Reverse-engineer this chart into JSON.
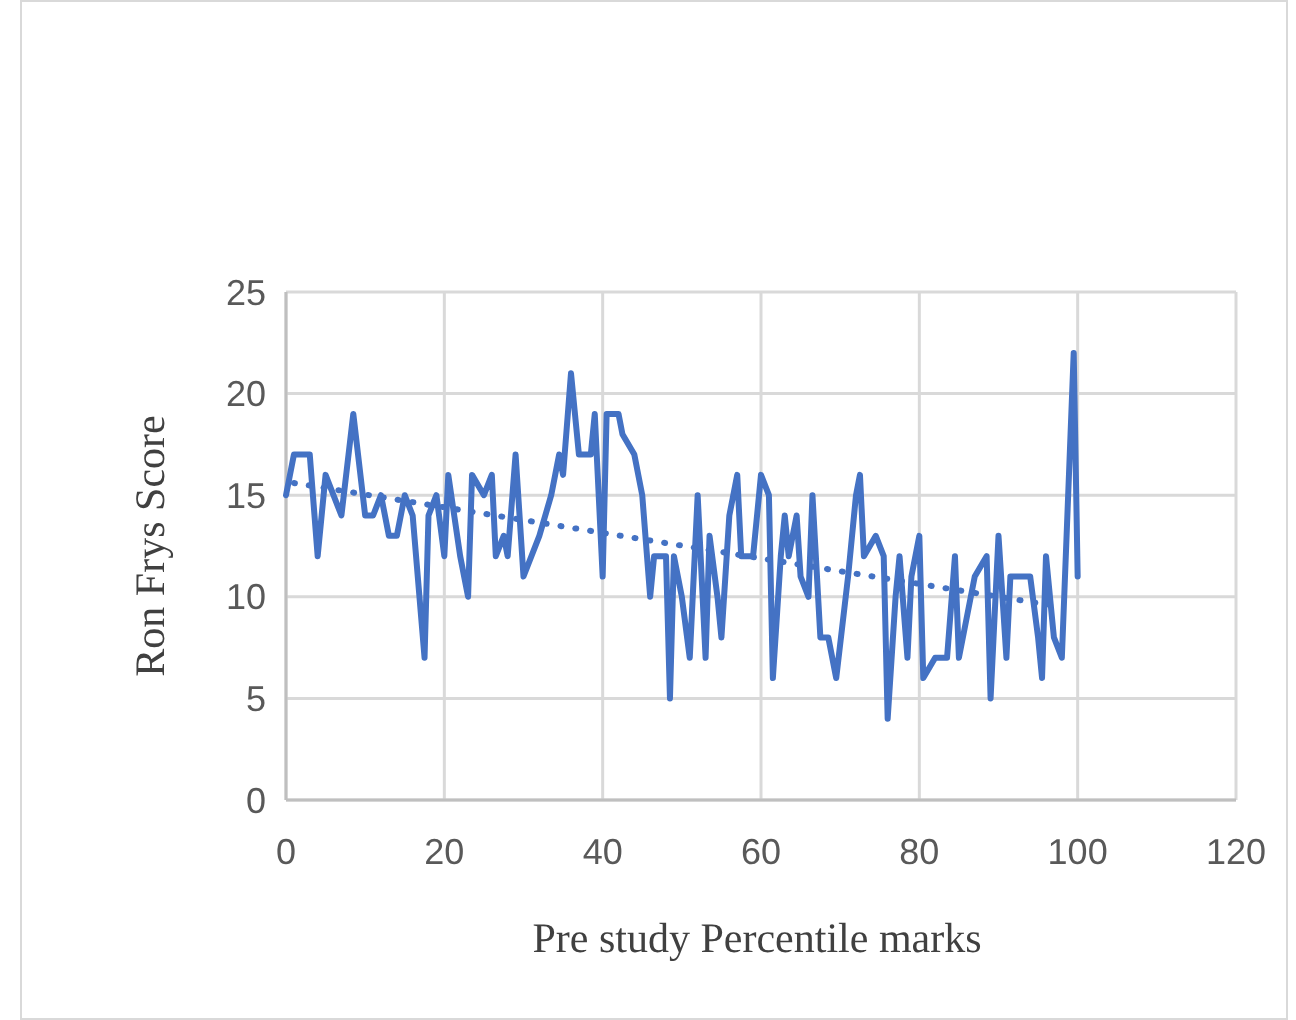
{
  "chart_data": {
    "type": "line",
    "xlabel": "Pre study Percentile marks",
    "ylabel": "Ron Frys Score",
    "xlim": [
      0,
      120
    ],
    "xticks": [
      0,
      20,
      40,
      60,
      80,
      100,
      120
    ],
    "ylim": [
      0,
      25
    ],
    "yticks": [
      0,
      5,
      10,
      15,
      20,
      25
    ],
    "grid": true,
    "series": [
      {
        "color": "#4472c4",
        "line_style": "solid",
        "x": [
          0,
          1,
          3,
          4,
          5,
          7,
          8.5,
          10,
          11,
          12,
          13,
          14,
          15,
          16,
          17.5,
          18,
          19,
          20,
          20.5,
          22,
          23,
          23.5,
          25,
          26,
          26.5,
          27.5,
          28,
          29,
          30,
          32,
          33.5,
          34.5,
          35,
          36,
          37,
          38.5,
          39,
          40,
          40.5,
          42,
          42.5,
          44,
          45,
          46,
          46.5,
          48,
          48.5,
          49,
          50,
          51,
          52,
          53,
          53.5,
          54.5,
          55,
          56,
          57,
          57.5,
          59,
          60,
          61,
          61.5,
          62.5,
          63,
          63.5,
          64.5,
          65,
          66,
          66.5,
          67.5,
          68.5,
          69.5,
          71,
          72,
          72.5,
          73,
          74.5,
          75.5,
          76,
          77,
          77.5,
          78.5,
          79,
          80,
          80.5,
          82,
          83.5,
          84.5,
          85,
          87,
          88.5,
          89,
          90,
          91,
          91.5,
          93,
          94,
          95,
          95.5,
          96,
          97,
          98,
          99.5,
          100
        ],
        "values": [
          15,
          17,
          17,
          12,
          16,
          14,
          19,
          14,
          14,
          15,
          13,
          13,
          15,
          14,
          7,
          14,
          15,
          12,
          16,
          12,
          10,
          16,
          15,
          16,
          12,
          13,
          12,
          17,
          11,
          13,
          15,
          17,
          16,
          21,
          17,
          17,
          19,
          11,
          19,
          19,
          18,
          17,
          15,
          10,
          12,
          12,
          5,
          12,
          10,
          7,
          15,
          7,
          13,
          10,
          8,
          14,
          16,
          12,
          12,
          16,
          15,
          6,
          12,
          14,
          12,
          14,
          11,
          10,
          15,
          8,
          8,
          6,
          11,
          15,
          16,
          12,
          13,
          12,
          4,
          10,
          12,
          7,
          11,
          13,
          6,
          7,
          7,
          12,
          7,
          11,
          12,
          5,
          13,
          7,
          11,
          11,
          11,
          8,
          6,
          12,
          8,
          7,
          22,
          11
        ]
      },
      {
        "color": "#4472c4",
        "line_style": "dotted",
        "x": [
          1,
          98
        ],
        "values": [
          15.6,
          9.5
        ]
      }
    ]
  }
}
